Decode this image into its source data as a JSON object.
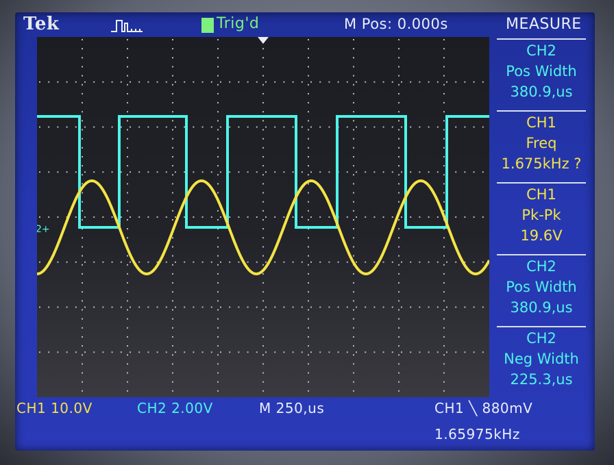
{
  "header": {
    "brand": "Tek",
    "trigger_status": "Trig'd",
    "m_pos": "M Pos: 0.000s",
    "menu_title": "MEASURE"
  },
  "measurements": [
    {
      "source": "CH2",
      "type": "Pos Width",
      "value": "380.9,us"
    },
    {
      "source": "CH1",
      "type": "Freq",
      "value": "1.675kHz ?"
    },
    {
      "source": "CH1",
      "type": "Pk-Pk",
      "value": "19.6V"
    },
    {
      "source": "CH2",
      "type": "Pos Width",
      "value": "380.9,us"
    },
    {
      "source": "CH2",
      "type": "Neg Width",
      "value": "225.3,us"
    }
  ],
  "footer": {
    "ch1_scale": "CH1  10.0V",
    "ch2_scale": "CH2  2.00V",
    "time_scale": "M 250,us",
    "trigger_readout": "CH1 ╲ 880mV",
    "freq_readout": "1.65975kHz"
  },
  "channel_marker": "2+",
  "colors": {
    "ch1": "#f4e345",
    "ch2": "#4ff3e8",
    "screen_bg": "#2637b0"
  }
}
